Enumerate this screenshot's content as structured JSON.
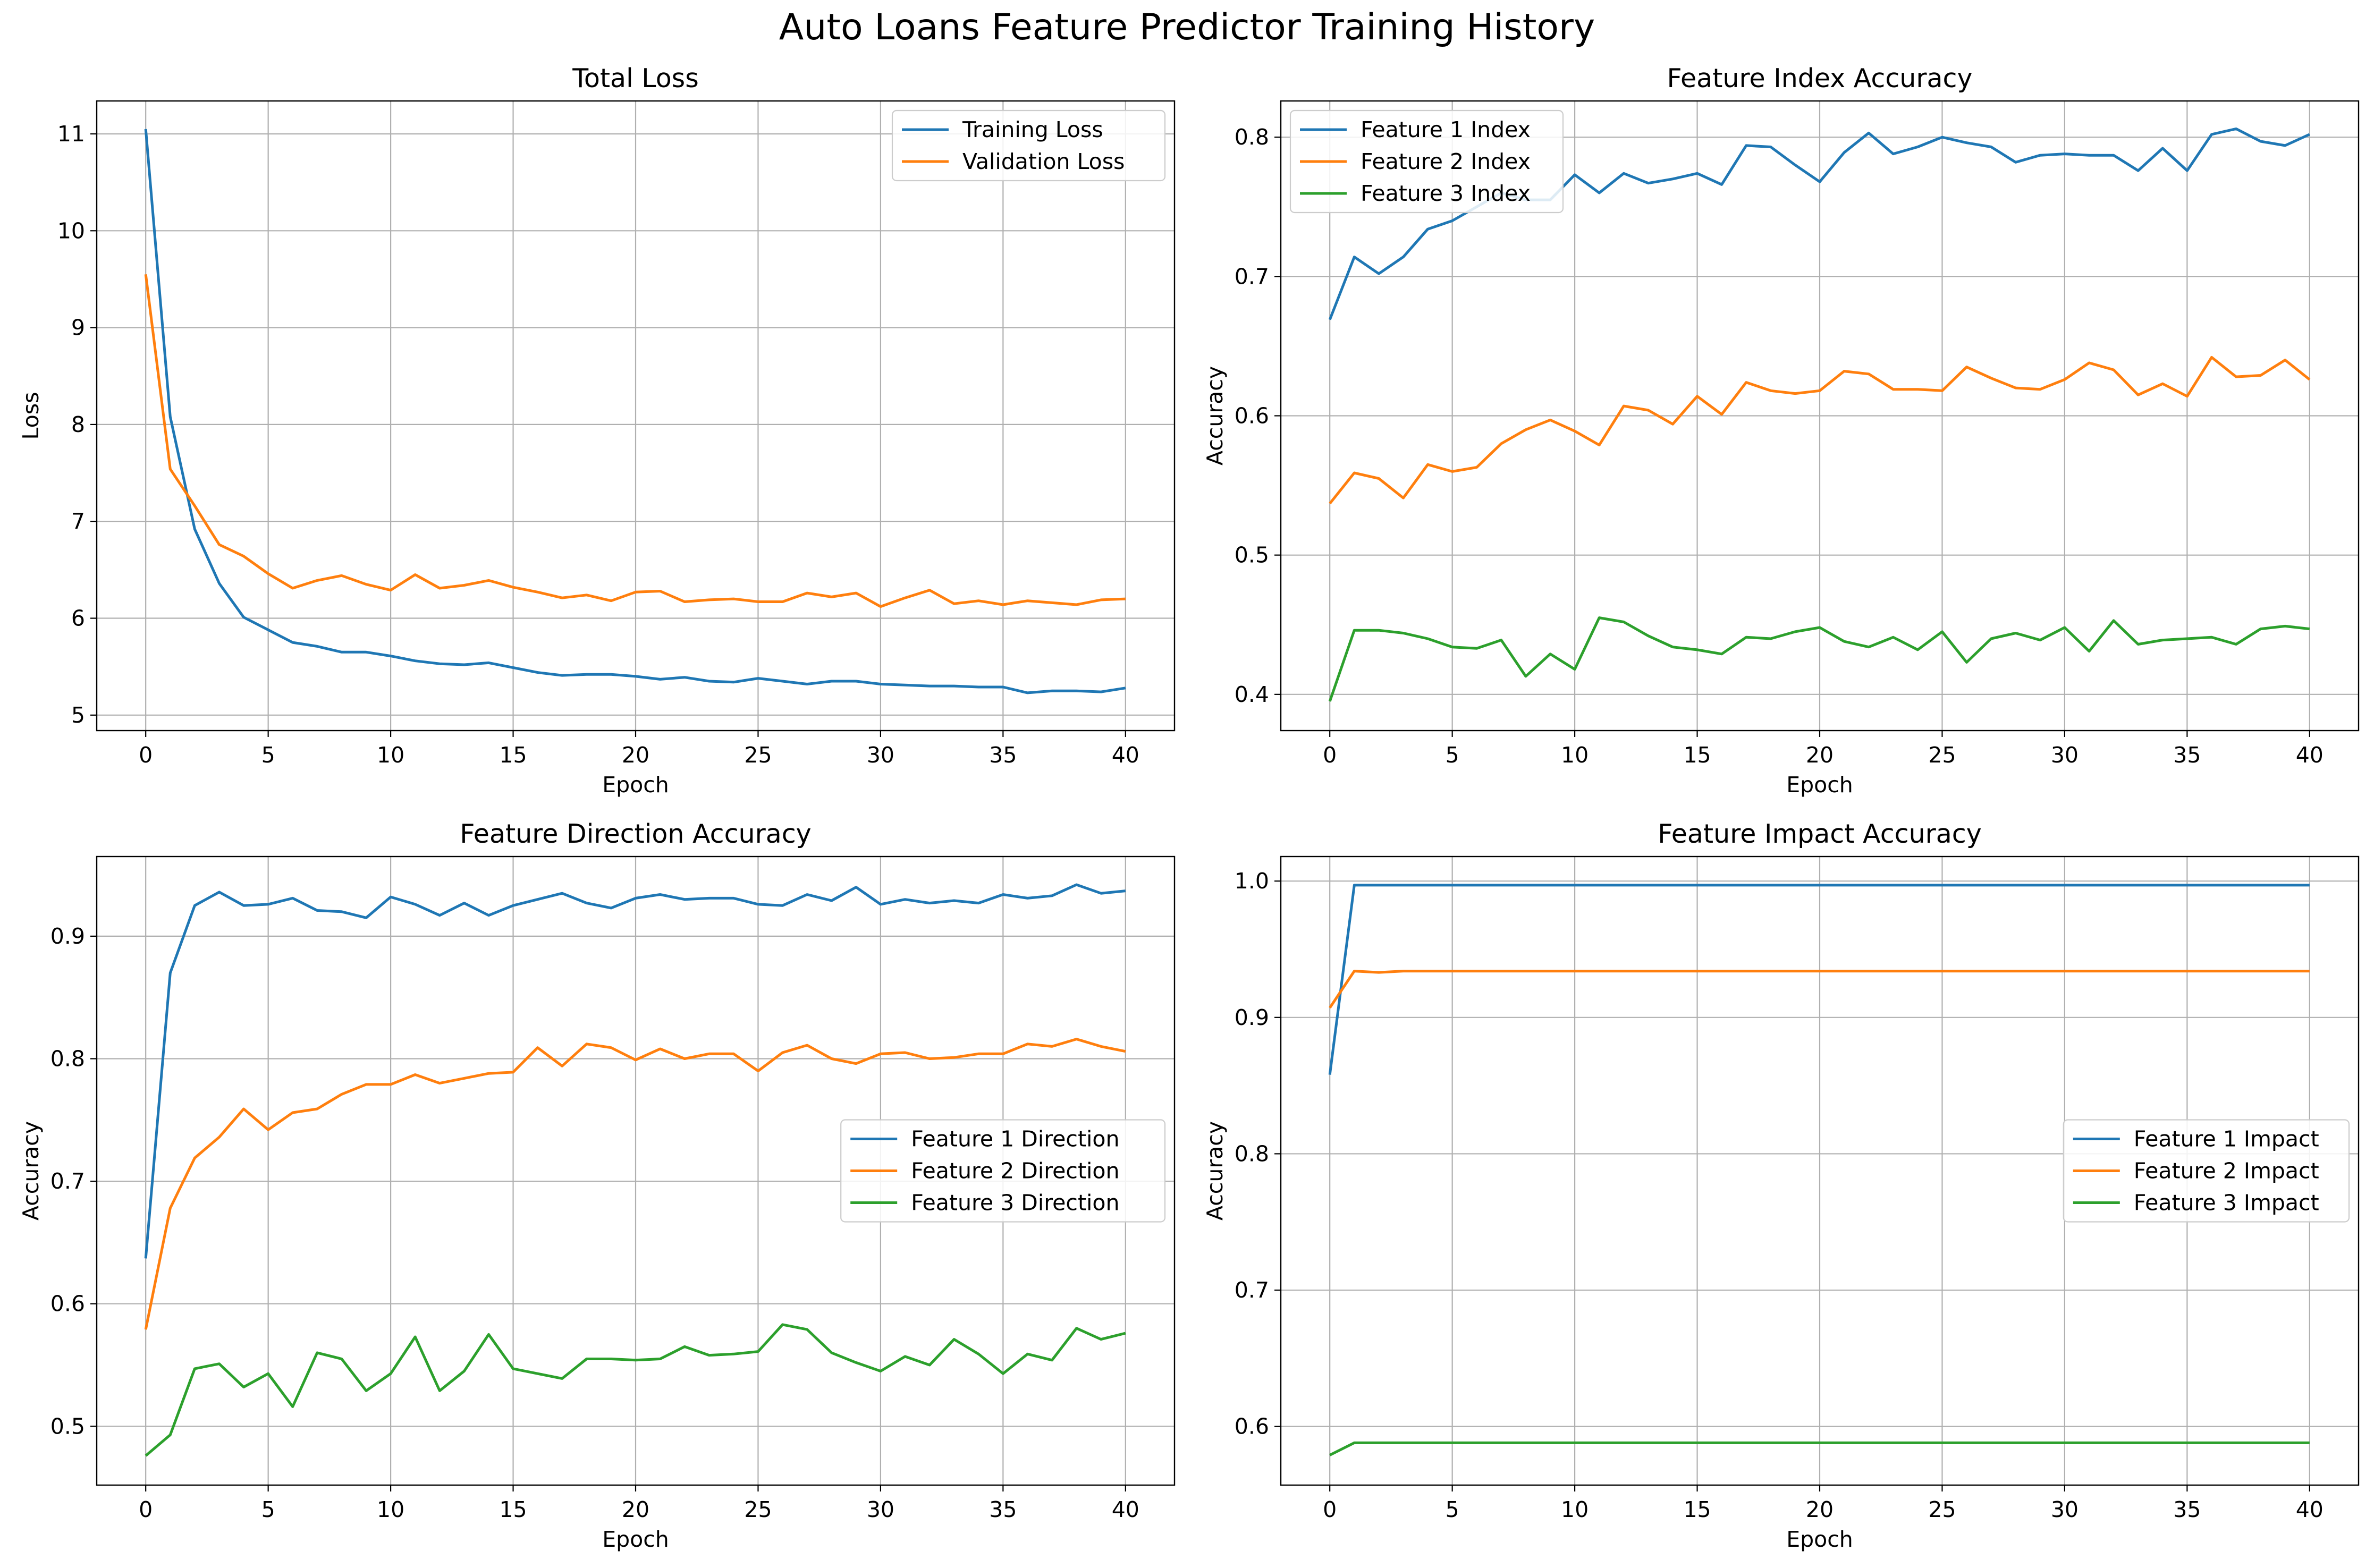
{
  "figure": {
    "title": "Auto Loans Feature Predictor Training History"
  },
  "chart_data": [
    {
      "type": "line",
      "title": "Total Loss",
      "xlabel": "Epoch",
      "ylabel": "Loss",
      "xlim": [
        -2,
        42
      ],
      "ylim": [
        4.84,
        11.34
      ],
      "xticks": [
        0,
        5,
        10,
        15,
        20,
        25,
        30,
        35,
        40
      ],
      "yticks": [
        5,
        6,
        7,
        8,
        9,
        10,
        11
      ],
      "grid": true,
      "legend": "upper right",
      "series": [
        {
          "name": "Training Loss",
          "color": "#1f77b4",
          "values": [
            11.05,
            8.08,
            6.92,
            6.36,
            6.01,
            5.88,
            5.75,
            5.71,
            5.65,
            5.65,
            5.61,
            5.56,
            5.53,
            5.52,
            5.54,
            5.49,
            5.44,
            5.41,
            5.42,
            5.42,
            5.4,
            5.37,
            5.39,
            5.35,
            5.34,
            5.38,
            5.35,
            5.32,
            5.35,
            5.35,
            5.32,
            5.31,
            5.3,
            5.3,
            5.29,
            5.29,
            5.23,
            5.25,
            5.25,
            5.24,
            5.28
          ]
        },
        {
          "name": "Validation Loss",
          "color": "#ff7f0e",
          "values": [
            9.55,
            7.54,
            7.16,
            6.76,
            6.64,
            6.46,
            6.31,
            6.39,
            6.44,
            6.35,
            6.29,
            6.45,
            6.31,
            6.34,
            6.39,
            6.32,
            6.27,
            6.21,
            6.24,
            6.18,
            6.27,
            6.28,
            6.17,
            6.19,
            6.2,
            6.17,
            6.17,
            6.26,
            6.22,
            6.26,
            6.12,
            6.21,
            6.29,
            6.15,
            6.18,
            6.14,
            6.18,
            6.16,
            6.14,
            6.19,
            6.2
          ]
        }
      ]
    },
    {
      "type": "line",
      "title": "Feature Index Accuracy",
      "xlabel": "Epoch",
      "ylabel": "Accuracy",
      "xlim": [
        -2,
        42
      ],
      "ylim": [
        0.374,
        0.826
      ],
      "xticks": [
        0,
        5,
        10,
        15,
        20,
        25,
        30,
        35,
        40
      ],
      "yticks": [
        0.4,
        0.5,
        0.6,
        0.7,
        0.8
      ],
      "grid": true,
      "legend": "upper left",
      "series": [
        {
          "name": "Feature 1 Index",
          "color": "#1f77b4",
          "values": [
            0.669,
            0.714,
            0.702,
            0.714,
            0.734,
            0.74,
            0.75,
            0.76,
            0.755,
            0.755,
            0.773,
            0.76,
            0.774,
            0.767,
            0.77,
            0.774,
            0.766,
            0.794,
            0.793,
            0.78,
            0.768,
            0.789,
            0.803,
            0.788,
            0.793,
            0.8,
            0.796,
            0.793,
            0.782,
            0.787,
            0.788,
            0.787,
            0.787,
            0.776,
            0.792,
            0.776,
            0.802,
            0.806,
            0.797,
            0.794,
            0.802
          ]
        },
        {
          "name": "Feature 2 Index",
          "color": "#ff7f0e",
          "values": [
            0.537,
            0.559,
            0.555,
            0.541,
            0.565,
            0.56,
            0.563,
            0.58,
            0.59,
            0.597,
            0.589,
            0.579,
            0.607,
            0.604,
            0.594,
            0.614,
            0.601,
            0.624,
            0.618,
            0.616,
            0.618,
            0.632,
            0.63,
            0.619,
            0.619,
            0.618,
            0.635,
            0.627,
            0.62,
            0.619,
            0.626,
            0.638,
            0.633,
            0.615,
            0.623,
            0.614,
            0.642,
            0.628,
            0.629,
            0.64,
            0.626
          ]
        },
        {
          "name": "Feature 3 Index",
          "color": "#2ca02c",
          "values": [
            0.395,
            0.446,
            0.446,
            0.444,
            0.44,
            0.434,
            0.433,
            0.439,
            0.413,
            0.429,
            0.418,
            0.455,
            0.452,
            0.442,
            0.434,
            0.432,
            0.429,
            0.441,
            0.44,
            0.445,
            0.448,
            0.438,
            0.434,
            0.441,
            0.432,
            0.445,
            0.423,
            0.44,
            0.444,
            0.439,
            0.448,
            0.431,
            0.453,
            0.436,
            0.439,
            0.44,
            0.441,
            0.436,
            0.447,
            0.449,
            0.447
          ]
        }
      ]
    },
    {
      "type": "line",
      "title": "Feature Direction Accuracy",
      "xlabel": "Epoch",
      "ylabel": "Accuracy",
      "xlim": [
        -2,
        42
      ],
      "ylim": [
        0.452,
        0.965
      ],
      "xticks": [
        0,
        5,
        10,
        15,
        20,
        25,
        30,
        35,
        40
      ],
      "yticks": [
        0.5,
        0.6,
        0.7,
        0.8,
        0.9
      ],
      "grid": true,
      "legend": "center right",
      "series": [
        {
          "name": "Feature 1 Direction",
          "color": "#1f77b4",
          "values": [
            0.637,
            0.87,
            0.925,
            0.936,
            0.925,
            0.926,
            0.931,
            0.921,
            0.92,
            0.915,
            0.932,
            0.926,
            0.917,
            0.927,
            0.917,
            0.925,
            0.93,
            0.935,
            0.927,
            0.923,
            0.931,
            0.934,
            0.93,
            0.931,
            0.931,
            0.926,
            0.925,
            0.934,
            0.929,
            0.94,
            0.926,
            0.93,
            0.927,
            0.929,
            0.927,
            0.934,
            0.931,
            0.933,
            0.942,
            0.935,
            0.937
          ]
        },
        {
          "name": "Feature 2 Direction",
          "color": "#ff7f0e",
          "values": [
            0.579,
            0.678,
            0.719,
            0.736,
            0.759,
            0.742,
            0.756,
            0.759,
            0.771,
            0.779,
            0.779,
            0.787,
            0.78,
            0.784,
            0.788,
            0.789,
            0.809,
            0.794,
            0.812,
            0.809,
            0.799,
            0.808,
            0.8,
            0.804,
            0.804,
            0.79,
            0.805,
            0.811,
            0.8,
            0.796,
            0.804,
            0.805,
            0.8,
            0.801,
            0.804,
            0.804,
            0.812,
            0.81,
            0.816,
            0.81,
            0.806
          ]
        },
        {
          "name": "Feature 3 Direction",
          "color": "#2ca02c",
          "values": [
            0.476,
            0.493,
            0.547,
            0.551,
            0.532,
            0.543,
            0.516,
            0.56,
            0.555,
            0.529,
            0.543,
            0.573,
            0.529,
            0.545,
            0.575,
            0.547,
            0.543,
            0.539,
            0.555,
            0.555,
            0.554,
            0.555,
            0.565,
            0.558,
            0.559,
            0.561,
            0.583,
            0.579,
            0.56,
            0.552,
            0.545,
            0.557,
            0.55,
            0.571,
            0.559,
            0.543,
            0.559,
            0.554,
            0.58,
            0.571,
            0.576
          ]
        }
      ]
    },
    {
      "type": "line",
      "title": "Feature Impact Accuracy",
      "xlabel": "Epoch",
      "ylabel": "Accuracy",
      "xlim": [
        -2,
        42
      ],
      "ylim": [
        0.557,
        1.018
      ],
      "xticks": [
        0,
        5,
        10,
        15,
        20,
        25,
        30,
        35,
        40
      ],
      "yticks": [
        0.6,
        0.7,
        0.8,
        0.9,
        1.0
      ],
      "grid": true,
      "legend": "center right",
      "series": [
        {
          "name": "Feature 1 Impact",
          "color": "#1f77b4",
          "values": [
            0.858,
            0.997,
            0.997,
            0.997,
            0.997,
            0.997,
            0.997,
            0.997,
            0.997,
            0.997,
            0.997,
            0.997,
            0.997,
            0.997,
            0.997,
            0.997,
            0.997,
            0.997,
            0.997,
            0.997,
            0.997,
            0.997,
            0.997,
            0.997,
            0.997,
            0.997,
            0.997,
            0.997,
            0.997,
            0.997,
            0.997,
            0.997,
            0.997,
            0.997,
            0.997,
            0.997,
            0.997,
            0.997,
            0.997,
            0.997,
            0.997
          ]
        },
        {
          "name": "Feature 2 Impact",
          "color": "#ff7f0e",
          "values": [
            0.907,
            0.934,
            0.933,
            0.934,
            0.934,
            0.934,
            0.934,
            0.934,
            0.934,
            0.934,
            0.934,
            0.934,
            0.934,
            0.934,
            0.934,
            0.934,
            0.934,
            0.934,
            0.934,
            0.934,
            0.934,
            0.934,
            0.934,
            0.934,
            0.934,
            0.934,
            0.934,
            0.934,
            0.934,
            0.934,
            0.934,
            0.934,
            0.934,
            0.934,
            0.934,
            0.934,
            0.934,
            0.934,
            0.934,
            0.934,
            0.934
          ]
        },
        {
          "name": "Feature 3 Impact",
          "color": "#2ca02c",
          "values": [
            0.579,
            0.588,
            0.588,
            0.588,
            0.588,
            0.588,
            0.588,
            0.588,
            0.588,
            0.588,
            0.588,
            0.588,
            0.588,
            0.588,
            0.588,
            0.588,
            0.588,
            0.588,
            0.588,
            0.588,
            0.588,
            0.588,
            0.588,
            0.588,
            0.588,
            0.588,
            0.588,
            0.588,
            0.588,
            0.588,
            0.588,
            0.588,
            0.588,
            0.588,
            0.588,
            0.588,
            0.588,
            0.588,
            0.588,
            0.588,
            0.588
          ]
        }
      ]
    }
  ]
}
